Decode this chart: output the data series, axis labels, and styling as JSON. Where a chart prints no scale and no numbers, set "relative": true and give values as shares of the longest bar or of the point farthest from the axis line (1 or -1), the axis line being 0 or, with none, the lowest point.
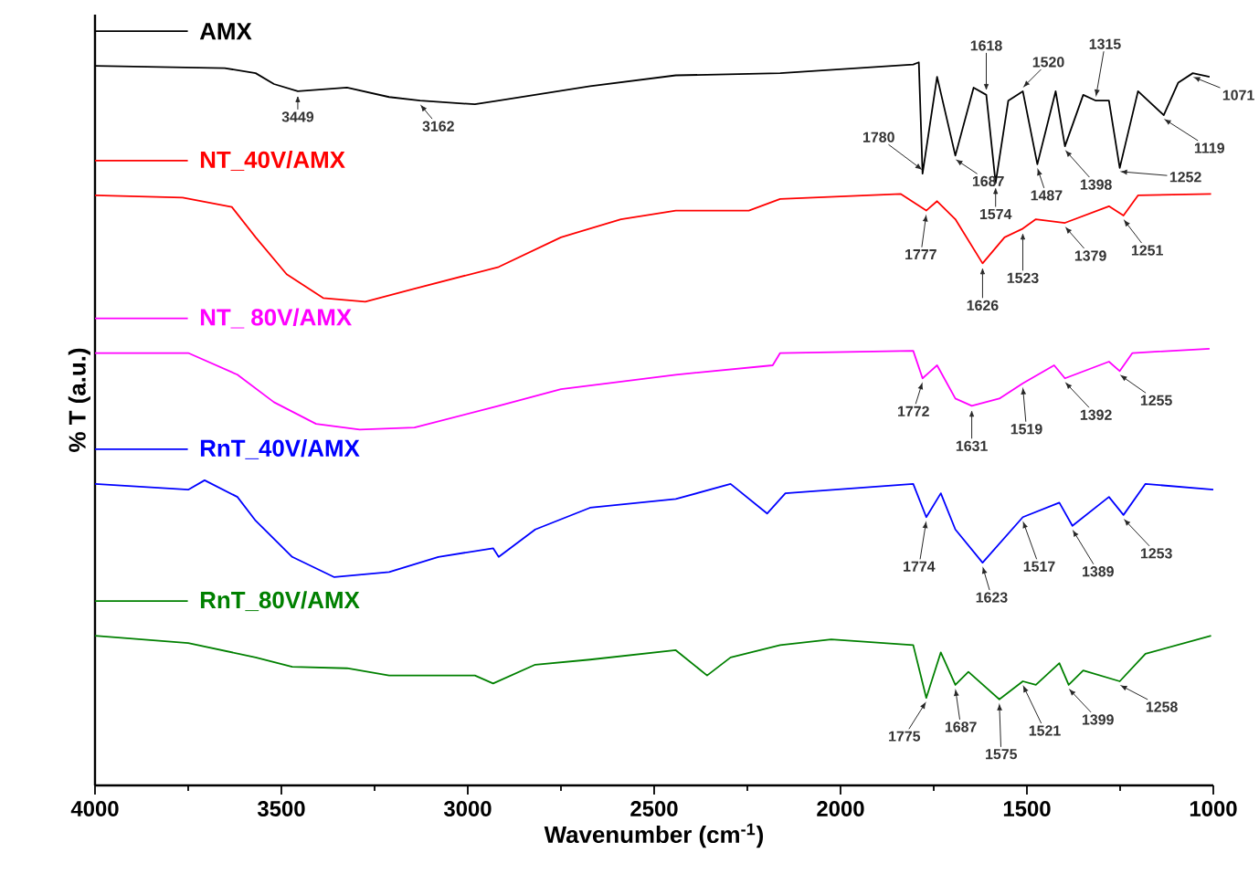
{
  "chart_data": {
    "type": "line",
    "xlabel": "Wavenumber (cm$^{-1}$)",
    "ylabel": "% T (a.u.)",
    "relative": true,
    "legend": "top left",
    "xlim": [
      4000,
      1000
    ],
    "xticks": [
      4000,
      3500,
      3000,
      2500,
      2000,
      1500,
      1000
    ],
    "series": [
      {
        "name": "AMX",
        "color": "#000000",
        "x": [
          4000,
          3652,
          3569,
          3520,
          3456,
          3324,
          3211,
          3128,
          2981,
          2917,
          2672,
          2442,
          2162,
          1805,
          1790,
          1780,
          1741,
          1692,
          1643,
          1609,
          1584,
          1550,
          1511,
          1472,
          1423,
          1398,
          1349,
          1315,
          1280,
          1251,
          1202,
          1133,
          1094,
          1055,
          1010
        ],
        "values": [
          0.995,
          0.992,
          0.985,
          0.97,
          0.96,
          0.965,
          0.952,
          0.947,
          0.942,
          0.947,
          0.967,
          0.982,
          0.985,
          0.997,
          1.0,
          0.846,
          0.98,
          0.871,
          0.965,
          0.955,
          0.833,
          0.947,
          0.96,
          0.859,
          0.96,
          0.884,
          0.955,
          0.947,
          0.947,
          0.854,
          0.96,
          0.927,
          0.972,
          0.985,
          0.98
        ]
      },
      {
        "name": "NT_40V/AMX",
        "color": "#ff0000",
        "x": [
          4000,
          3765,
          3633,
          3569,
          3486,
          3388,
          3275,
          3143,
          2917,
          2750,
          2589,
          2442,
          2246,
          2162,
          1839,
          1770,
          1741,
          1692,
          1619,
          1560,
          1511,
          1476,
          1398,
          1280,
          1241,
          1202,
          1006
        ],
        "values": [
          0.816,
          0.813,
          0.8,
          0.758,
          0.707,
          0.674,
          0.669,
          0.687,
          0.717,
          0.758,
          0.783,
          0.795,
          0.795,
          0.811,
          0.818,
          0.795,
          0.808,
          0.783,
          0.722,
          0.758,
          0.77,
          0.783,
          0.778,
          0.801,
          0.788,
          0.816,
          0.818
        ]
      },
      {
        "name": "NT_ 80V/AMX",
        "color": "#ff00ff",
        "x": [
          4000,
          3750,
          3618,
          3520,
          3407,
          3290,
          3143,
          2917,
          2750,
          2442,
          2182,
          2162,
          1805,
          1780,
          1741,
          1692,
          1648,
          1574,
          1511,
          1427,
          1398,
          1280,
          1251,
          1217,
          1010
        ],
        "values": [
          0.598,
          0.598,
          0.568,
          0.53,
          0.5,
          0.492,
          0.495,
          0.525,
          0.548,
          0.568,
          0.581,
          0.598,
          0.601,
          0.563,
          0.581,
          0.535,
          0.525,
          0.535,
          0.556,
          0.581,
          0.563,
          0.586,
          0.573,
          0.598,
          0.604
        ]
      },
      {
        "name": "RnT_40V/AMX",
        "color": "#0000ff",
        "x": [
          4000,
          3750,
          3706,
          3618,
          3569,
          3471,
          3358,
          3211,
          3079,
          2932,
          2917,
          2819,
          2672,
          2442,
          2295,
          2197,
          2148,
          1805,
          1770,
          1731,
          1692,
          1619,
          1511,
          1413,
          1378,
          1280,
          1241,
          1182,
          1000
        ],
        "values": [
          0.417,
          0.409,
          0.422,
          0.399,
          0.366,
          0.316,
          0.288,
          0.295,
          0.316,
          0.328,
          0.316,
          0.354,
          0.384,
          0.396,
          0.417,
          0.376,
          0.404,
          0.417,
          0.371,
          0.404,
          0.354,
          0.308,
          0.371,
          0.391,
          0.359,
          0.399,
          0.374,
          0.417,
          0.409
        ]
      },
      {
        "name": "RnT_80V/AMX",
        "color": "#008000",
        "x": [
          4000,
          3750,
          3569,
          3471,
          3324,
          3211,
          2981,
          2932,
          2819,
          2672,
          2442,
          2358,
          2295,
          2162,
          2025,
          1805,
          1770,
          1731,
          1692,
          1657,
          1574,
          1511,
          1476,
          1413,
          1388,
          1349,
          1251,
          1182,
          1006
        ],
        "values": [
          0.207,
          0.197,
          0.177,
          0.164,
          0.162,
          0.152,
          0.152,
          0.141,
          0.167,
          0.174,
          0.187,
          0.152,
          0.177,
          0.194,
          0.202,
          0.194,
          0.121,
          0.184,
          0.139,
          0.157,
          0.119,
          0.144,
          0.139,
          0.169,
          0.139,
          0.159,
          0.144,
          0.182,
          0.207
        ]
      }
    ],
    "annotations": [
      {
        "text": "3449",
        "x": 3456,
        "y": 0.96
      },
      {
        "text": "3162",
        "x": 3128,
        "y": 0.947
      },
      {
        "text": "1780",
        "x": 1780,
        "y": 0.846
      },
      {
        "text": "1687",
        "x": 1692,
        "y": 0.871
      },
      {
        "text": "1618",
        "x": 1609,
        "y": 0.955
      },
      {
        "text": "1574",
        "x": 1584,
        "y": 0.833
      },
      {
        "text": "1520",
        "x": 1511,
        "y": 0.96
      },
      {
        "text": "1487",
        "x": 1472,
        "y": 0.859
      },
      {
        "text": "1398",
        "x": 1398,
        "y": 0.884
      },
      {
        "text": "1315",
        "x": 1315,
        "y": 0.947
      },
      {
        "text": "1252",
        "x": 1251,
        "y": 0.854
      },
      {
        "text": "1119",
        "x": 1133,
        "y": 0.927
      },
      {
        "text": "1071",
        "x": 1055,
        "y": 0.985
      },
      {
        "text": "1777",
        "x": 1770,
        "y": 0.795
      },
      {
        "text": "1626",
        "x": 1619,
        "y": 0.722
      },
      {
        "text": "1523",
        "x": 1511,
        "y": 0.77
      },
      {
        "text": "1379",
        "x": 1398,
        "y": 0.778
      },
      {
        "text": "1251",
        "x": 1241,
        "y": 0.788
      },
      {
        "text": "1772",
        "x": 1780,
        "y": 0.563
      },
      {
        "text": "1631",
        "x": 1648,
        "y": 0.525
      },
      {
        "text": "1519",
        "x": 1511,
        "y": 0.556
      },
      {
        "text": "1392",
        "x": 1398,
        "y": 0.563
      },
      {
        "text": "1255",
        "x": 1251,
        "y": 0.573
      },
      {
        "text": "1774",
        "x": 1770,
        "y": 0.371
      },
      {
        "text": "1623",
        "x": 1619,
        "y": 0.308
      },
      {
        "text": "1517",
        "x": 1511,
        "y": 0.371
      },
      {
        "text": "1389",
        "x": 1378,
        "y": 0.359
      },
      {
        "text": "1253",
        "x": 1241,
        "y": 0.374
      },
      {
        "text": "1775",
        "x": 1770,
        "y": 0.121
      },
      {
        "text": "1687",
        "x": 1692,
        "y": 0.139
      },
      {
        "text": "1575",
        "x": 1574,
        "y": 0.119
      },
      {
        "text": "1521",
        "x": 1511,
        "y": 0.144
      },
      {
        "text": "1399",
        "x": 1388,
        "y": 0.139
      },
      {
        "text": "1258",
        "x": 1251,
        "y": 0.144
      }
    ]
  }
}
